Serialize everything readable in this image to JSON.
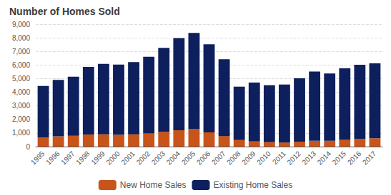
{
  "chart_data": {
    "type": "bar",
    "title": "Number of Homes Sold",
    "categories": [
      "1995",
      "1996",
      "1997",
      "1998",
      "1999",
      "2000",
      "2001",
      "2002",
      "2003",
      "2004",
      "2005",
      "2006",
      "2007",
      "2008",
      "2009",
      "2010",
      "2011",
      "2012",
      "2013",
      "2014",
      "2015",
      "2016",
      "2017"
    ],
    "series": [
      {
        "name": "New Home Sales",
        "color": "#C8541A",
        "values": [
          667,
          757,
          804,
          886,
          900,
          877,
          908,
          973,
          1086,
          1203,
          1283,
          1051,
          776,
          485,
          375,
          323,
          306,
          368,
          429,
          437,
          501,
          563,
          613
        ]
      },
      {
        "name": "Existing Home Sales",
        "color": "#0D1F5C",
        "values": [
          3800,
          4143,
          4340,
          4970,
          5180,
          5152,
          5300,
          5631,
          6175,
          6778,
          7076,
          6476,
          5652,
          3924,
          4340,
          4190,
          4262,
          4650,
          5090,
          4940,
          5250,
          5450,
          5510
        ]
      }
    ],
    "stacked": true,
    "ylim": [
      0,
      9000
    ],
    "yticks": [
      0,
      {
        "value": 1000,
        "label": "1,000"
      },
      {
        "value": 2000,
        "label": "2,000"
      },
      {
        "value": 3000,
        "label": "3,000"
      },
      {
        "value": 4000,
        "label": "4,000"
      },
      {
        "value": 5000,
        "label": "5,000"
      },
      {
        "value": 6000,
        "label": "6,000"
      },
      {
        "value": 7000,
        "label": "7,000"
      },
      {
        "value": 8000,
        "label": "8,000"
      },
      {
        "value": 9000,
        "label": "9,000"
      }
    ],
    "grid": true,
    "legend": "bottom"
  }
}
